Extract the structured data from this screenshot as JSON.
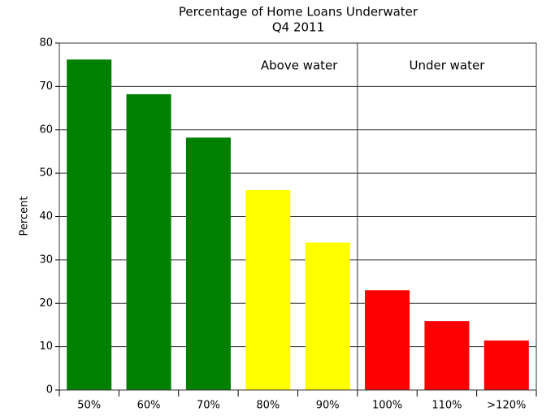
{
  "chart_data": {
    "type": "bar",
    "title": "Percentage of Home Loans Underwater",
    "subtitle": "Q4 2011",
    "y_label": "Percent",
    "categories": [
      "50%",
      "60%",
      "70%",
      "80%",
      "90%",
      "100%",
      "110%",
      ">120%"
    ],
    "values": [
      76.2,
      68.2,
      58.2,
      46.1,
      34.0,
      23.0,
      15.9,
      11.4
    ],
    "colors": [
      "#008000",
      "#008000",
      "#008000",
      "#ffff00",
      "#ffff00",
      "#ff0000",
      "#ff0000",
      "#ff0000"
    ],
    "annotations": [
      "Above water",
      "Under water"
    ],
    "ylim": [
      0,
      80
    ],
    "yticks": [
      0,
      10,
      20,
      30,
      40,
      50,
      60,
      70,
      80
    ],
    "grid": true
  }
}
